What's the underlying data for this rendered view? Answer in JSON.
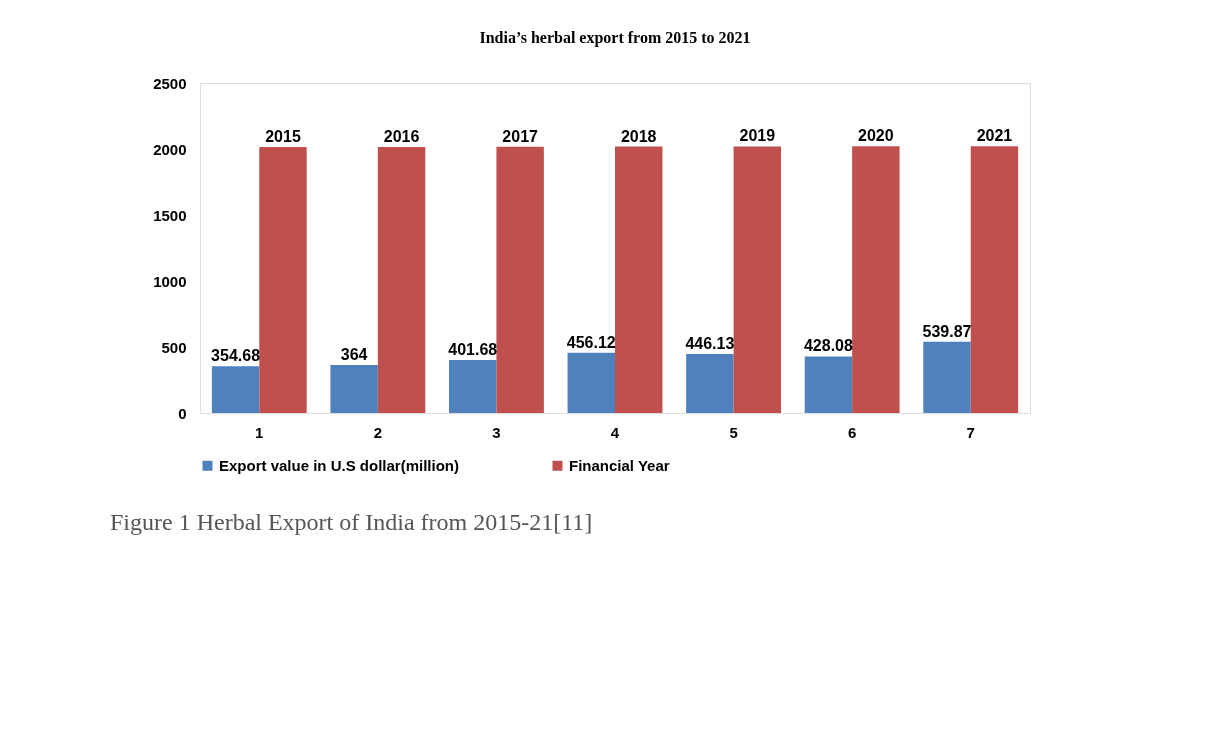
{
  "chart_data": {
    "type": "bar",
    "title": "India’s herbal export  from 2015 to 2021",
    "categories": [
      "1",
      "2",
      "3",
      "4",
      "5",
      "6",
      "7"
    ],
    "series": [
      {
        "name": "Export value in U.S dollar(million)",
        "color": "#4f81bd",
        "values": [
          354.68,
          364,
          401.68,
          456.12,
          446.13,
          428.08,
          539.87
        ]
      },
      {
        "name": "Financial Year",
        "color": "#c0504d",
        "values": [
          2015,
          2016,
          2017,
          2018,
          2019,
          2020,
          2021
        ]
      }
    ],
    "ylim": [
      0,
      2500
    ],
    "yticks": [
      0,
      500,
      1000,
      1500,
      2000,
      2500
    ],
    "grid": false,
    "legend": "bottom",
    "data_labels": true,
    "annotations": [
      "Figure 1 Herbal Export of India from 2015-21[11]"
    ]
  }
}
